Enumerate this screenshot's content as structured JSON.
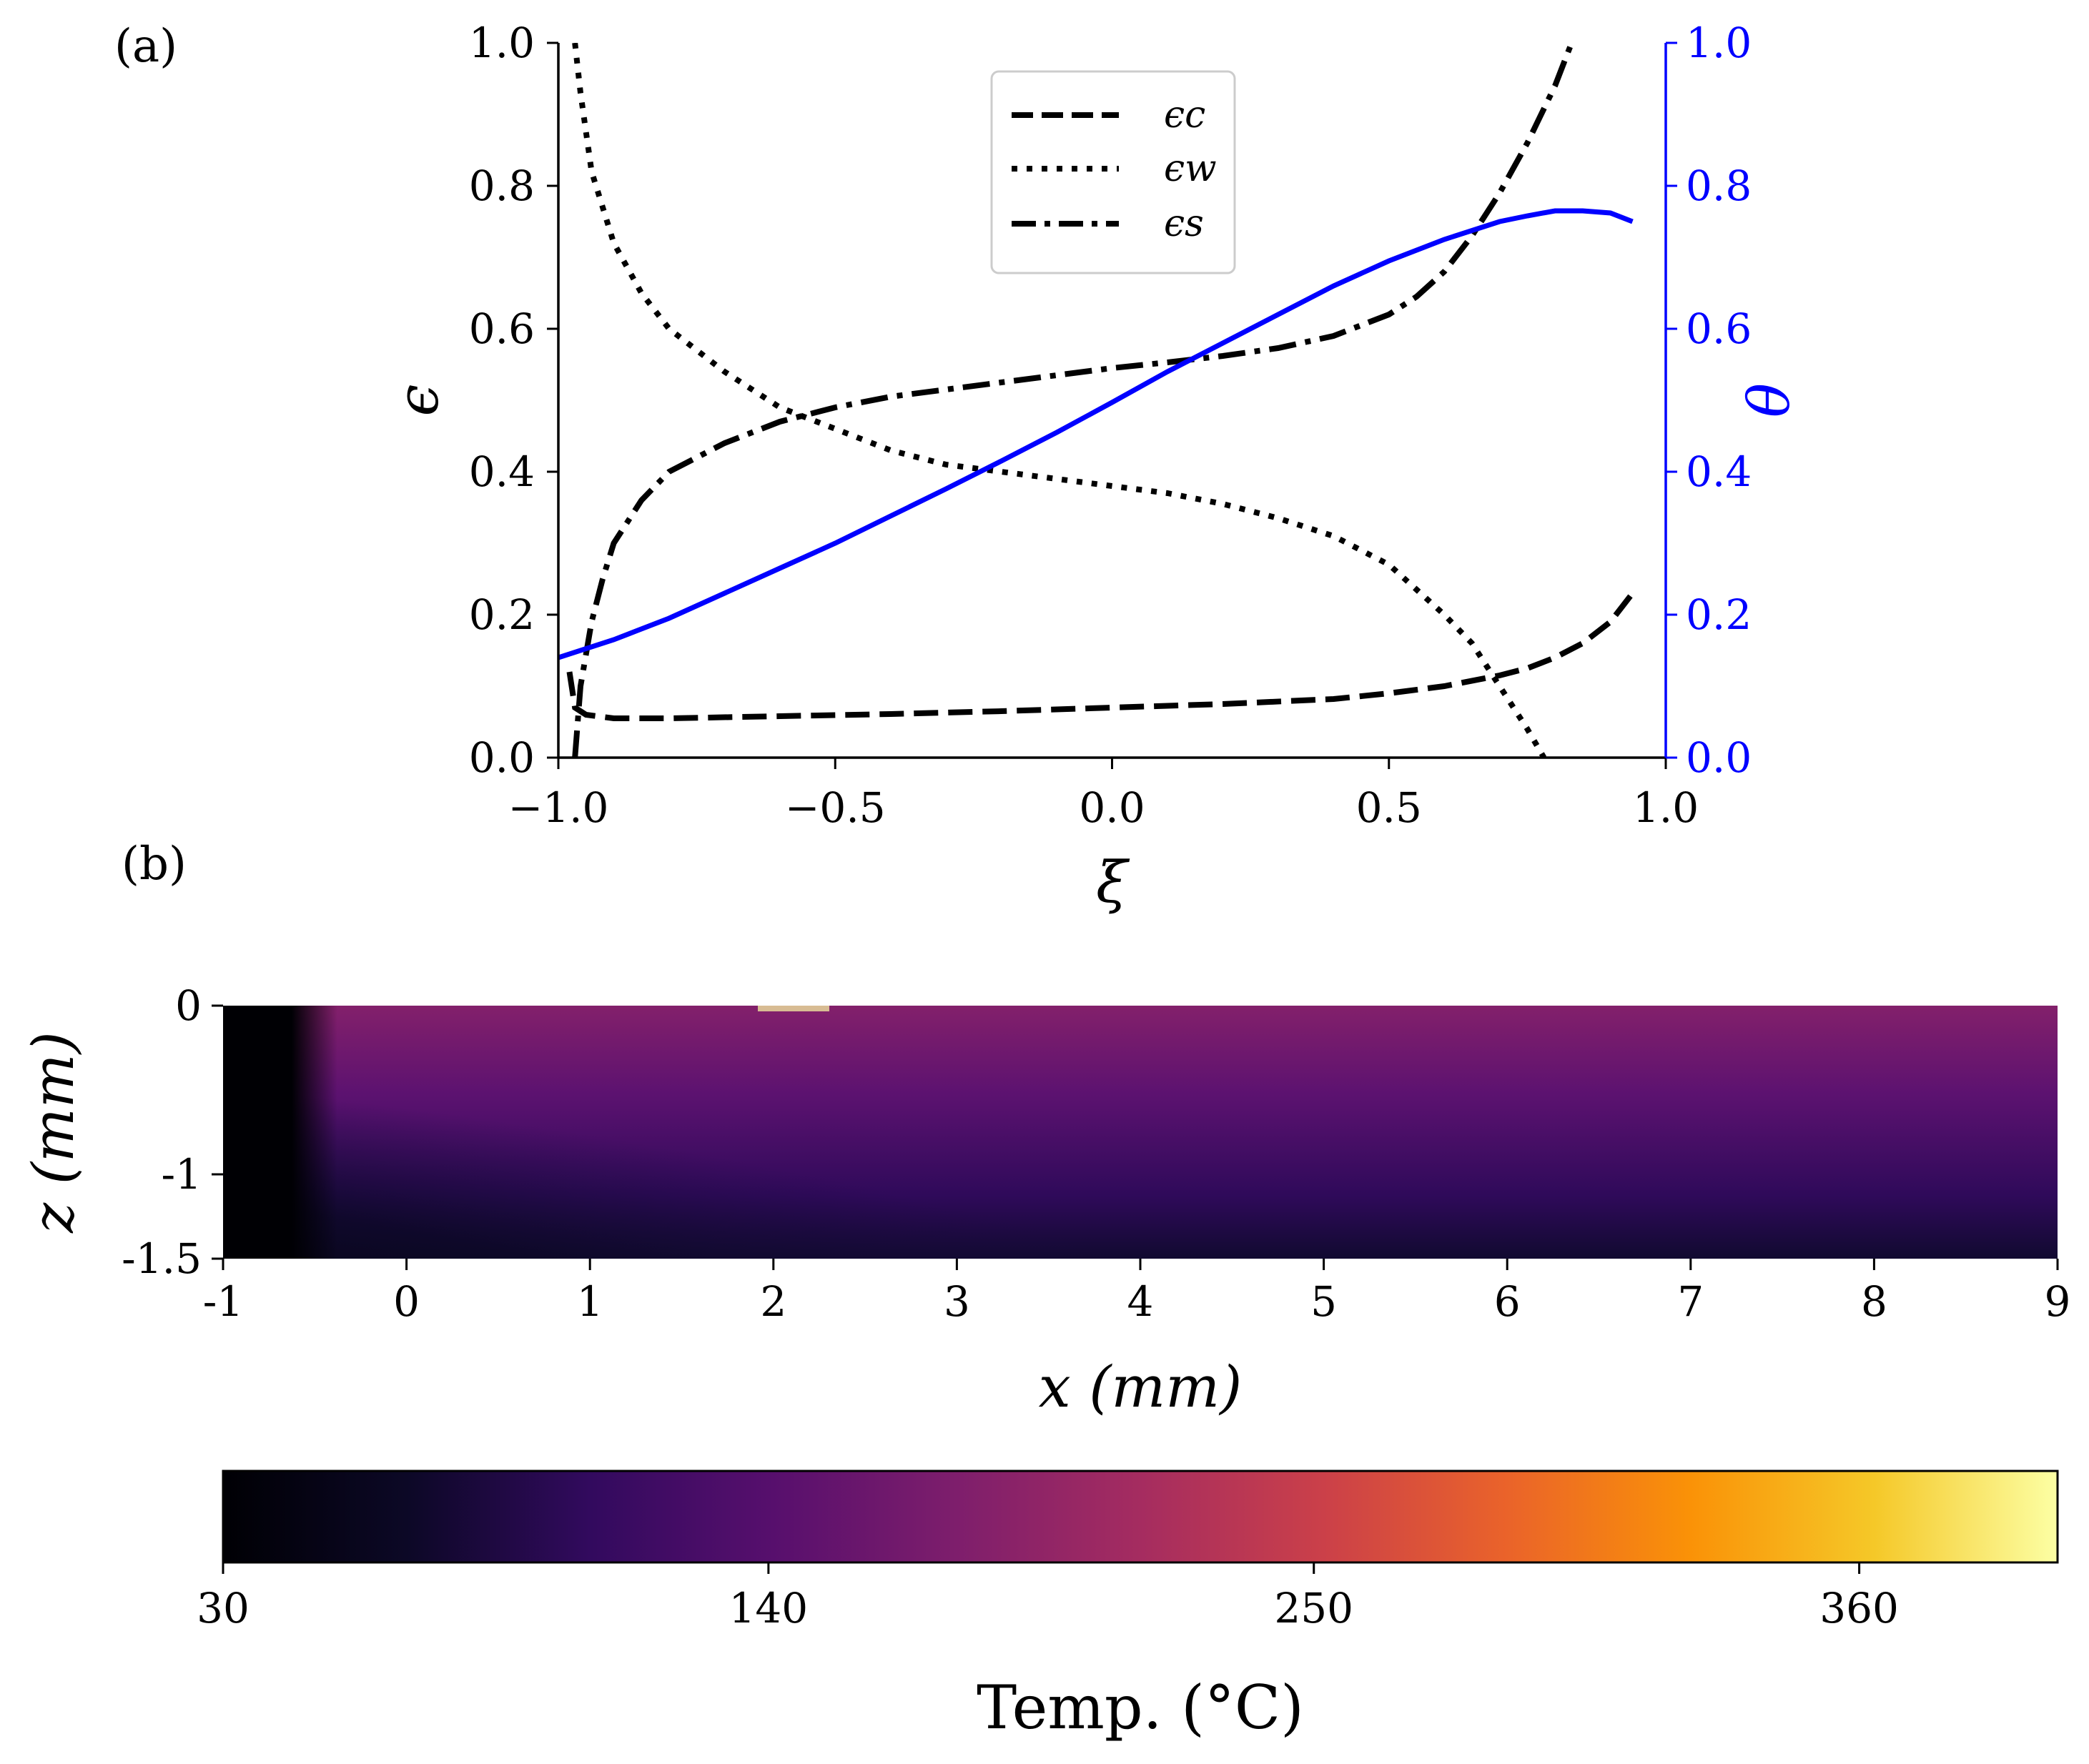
{
  "chart_data": [
    {
      "panel_label": "(a)",
      "type": "line",
      "xlabel": "ξ",
      "ylabel": "ϵ",
      "y2label": "θ",
      "xlim": [
        -1.0,
        1.0
      ],
      "ylim": [
        0.0,
        1.0
      ],
      "y2lim": [
        0.0,
        1.0
      ],
      "xticks": [
        "−1.0",
        "−0.5",
        "0.0",
        "0.5",
        "1.0"
      ],
      "yticks": [
        "0.0",
        "0.2",
        "0.4",
        "0.6",
        "0.8",
        "1.0"
      ],
      "y2ticks": [
        "0.0",
        "0.2",
        "0.4",
        "0.6",
        "0.8",
        "1.0"
      ],
      "colors": {
        "left_axis": "#000000",
        "right_axis": "#0000ff"
      },
      "legend_position": "top-center",
      "series": [
        {
          "name": "ϵc",
          "axis": "left",
          "style": "dashed",
          "color": "#000000",
          "x": [
            -0.98,
            -0.97,
            -0.95,
            -0.9,
            -0.8,
            -0.6,
            -0.4,
            -0.2,
            0.0,
            0.2,
            0.4,
            0.5,
            0.6,
            0.7,
            0.75,
            0.8,
            0.85,
            0.9,
            0.94
          ],
          "y": [
            0.12,
            0.07,
            0.06,
            0.055,
            0.055,
            0.058,
            0.061,
            0.065,
            0.07,
            0.075,
            0.082,
            0.09,
            0.1,
            0.115,
            0.125,
            0.14,
            0.16,
            0.19,
            0.23
          ]
        },
        {
          "name": "ϵw",
          "axis": "left",
          "style": "dotted",
          "color": "#000000",
          "x": [
            -0.97,
            -0.96,
            -0.94,
            -0.9,
            -0.85,
            -0.8,
            -0.7,
            -0.6,
            -0.5,
            -0.4,
            -0.3,
            -0.2,
            -0.1,
            0.0,
            0.1,
            0.2,
            0.3,
            0.4,
            0.5,
            0.6,
            0.65,
            0.7,
            0.75,
            0.78
          ],
          "y": [
            1.0,
            0.93,
            0.82,
            0.72,
            0.65,
            0.6,
            0.54,
            0.49,
            0.46,
            0.43,
            0.41,
            0.4,
            0.39,
            0.38,
            0.37,
            0.355,
            0.335,
            0.31,
            0.27,
            0.2,
            0.16,
            0.1,
            0.04,
            0.0
          ]
        },
        {
          "name": "ϵs",
          "axis": "left",
          "style": "dashdot",
          "color": "#000000",
          "x": [
            -0.97,
            -0.96,
            -0.94,
            -0.92,
            -0.9,
            -0.85,
            -0.8,
            -0.7,
            -0.6,
            -0.5,
            -0.4,
            -0.3,
            -0.2,
            -0.1,
            0.0,
            0.1,
            0.2,
            0.3,
            0.4,
            0.5,
            0.55,
            0.6,
            0.65,
            0.7,
            0.75,
            0.8,
            0.83
          ],
          "y": [
            0.0,
            0.1,
            0.19,
            0.25,
            0.3,
            0.36,
            0.4,
            0.44,
            0.47,
            0.49,
            0.505,
            0.515,
            0.525,
            0.535,
            0.545,
            0.553,
            0.562,
            0.573,
            0.59,
            0.62,
            0.645,
            0.68,
            0.73,
            0.79,
            0.86,
            0.94,
            1.0
          ]
        },
        {
          "name": "θ",
          "axis": "right",
          "style": "solid",
          "color": "#0000ff",
          "x": [
            -1.0,
            -0.9,
            -0.8,
            -0.7,
            -0.6,
            -0.5,
            -0.4,
            -0.3,
            -0.2,
            -0.1,
            0.0,
            0.1,
            0.2,
            0.3,
            0.4,
            0.5,
            0.6,
            0.7,
            0.75,
            0.8,
            0.85,
            0.9,
            0.94
          ],
          "y": [
            0.14,
            0.165,
            0.195,
            0.23,
            0.265,
            0.3,
            0.338,
            0.376,
            0.415,
            0.455,
            0.497,
            0.54,
            0.58,
            0.62,
            0.66,
            0.695,
            0.725,
            0.75,
            0.758,
            0.765,
            0.765,
            0.762,
            0.75
          ]
        }
      ]
    },
    {
      "panel_label": "(b)",
      "type": "heatmap",
      "xlabel": "x (mm)",
      "ylabel": "z (mm)",
      "xlim": [
        -1,
        9
      ],
      "ylim": [
        -1.5,
        0
      ],
      "xticks": [
        "-1",
        "0",
        "1",
        "2",
        "3",
        "4",
        "5",
        "6",
        "7",
        "8",
        "9"
      ],
      "yticks": [
        "0",
        "-1",
        "-1.5"
      ],
      "colormap": "inferno",
      "peak": {
        "x": 2,
        "z": 0,
        "value": 390
      },
      "colorbar": {
        "label": "Temp. (°C)",
        "range": [
          30,
          400
        ],
        "ticks": [
          "30",
          "140",
          "250",
          "360"
        ]
      }
    }
  ]
}
